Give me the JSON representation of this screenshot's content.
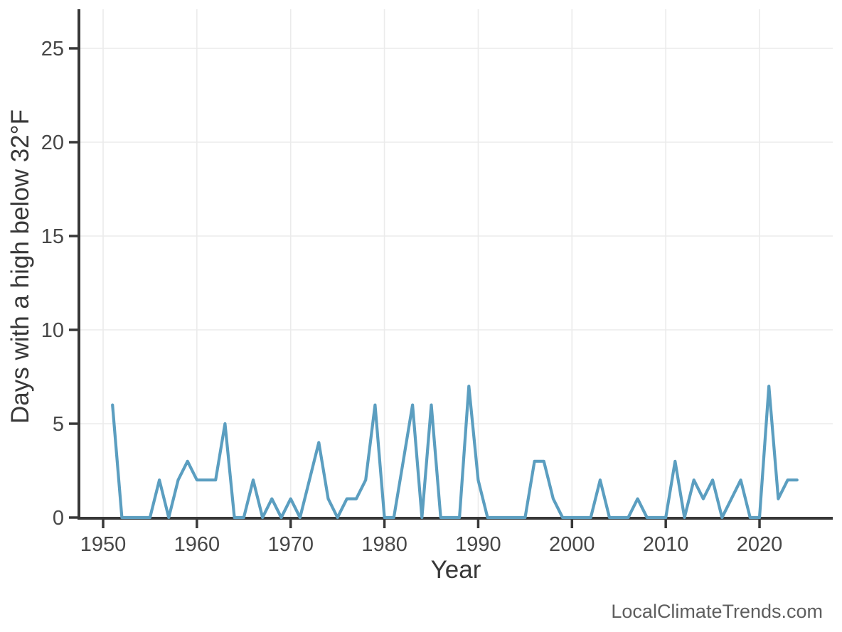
{
  "figure": {
    "background": "#ffffff"
  },
  "watermark": {
    "text": "LocalClimateTrends.com",
    "color": "#5e5e5e"
  },
  "chart_data": {
    "type": "line",
    "title": "",
    "xlabel": "Year",
    "ylabel": "Days with a high below 32°F",
    "x_ticks": [
      1950,
      1960,
      1970,
      1980,
      1990,
      2000,
      2010,
      2020
    ],
    "y_ticks": [
      0,
      5,
      10,
      15,
      20,
      25
    ],
    "xlim": [
      1947.4,
      2027.9
    ],
    "ylim": [
      0,
      27.1
    ],
    "grid": true,
    "legend": "none",
    "series": [
      {
        "name": "days-with-high-below-32F",
        "x": [
          1951,
          1952,
          1953,
          1954,
          1955,
          1956,
          1957,
          1958,
          1959,
          1960,
          1961,
          1962,
          1963,
          1964,
          1965,
          1966,
          1967,
          1968,
          1969,
          1970,
          1971,
          1972,
          1973,
          1974,
          1975,
          1976,
          1977,
          1978,
          1979,
          1980,
          1981,
          1982,
          1983,
          1984,
          1985,
          1986,
          1987,
          1988,
          1989,
          1990,
          1991,
          1992,
          1993,
          1994,
          1995,
          1996,
          1997,
          1998,
          1999,
          2000,
          2001,
          2002,
          2003,
          2004,
          2005,
          2006,
          2007,
          2008,
          2009,
          2010,
          2011,
          2012,
          2013,
          2014,
          2015,
          2016,
          2017,
          2018,
          2019,
          2020,
          2021,
          2022,
          2023,
          2024
        ],
        "y": [
          6,
          0,
          0,
          0,
          0,
          2,
          0,
          2,
          3,
          2,
          2,
          2,
          5,
          0,
          0,
          2,
          0,
          1,
          0,
          1,
          0,
          2,
          4,
          1,
          0,
          1,
          1,
          2,
          6,
          0,
          0,
          3,
          6,
          0,
          6,
          0,
          0,
          0,
          7,
          2,
          0,
          0,
          0,
          0,
          0,
          3,
          3,
          1,
          0,
          0,
          0,
          0,
          2,
          0,
          0,
          0,
          1,
          0,
          0,
          0,
          3,
          0,
          2,
          1,
          2,
          0,
          1,
          2,
          0,
          0,
          7,
          1,
          2,
          2
        ]
      }
    ],
    "colors": {
      "line": "#5b9ec0",
      "axis": "#383838",
      "grid": "#ebebeb",
      "tick_label": "#474747",
      "axis_title": "#383838"
    }
  }
}
